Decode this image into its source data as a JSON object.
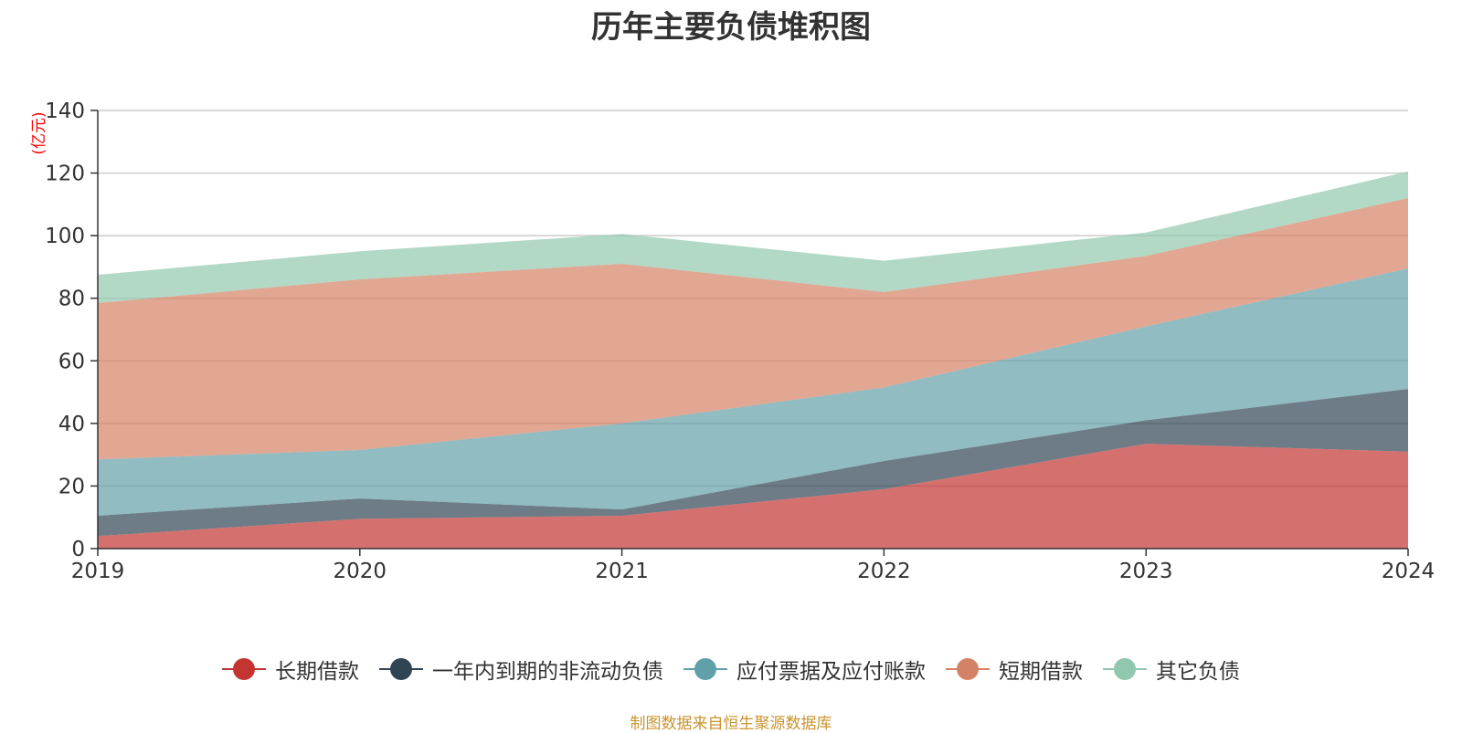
{
  "chart_data": {
    "type": "area",
    "stacked": true,
    "title": "历年主要负债堆积图",
    "unit_label": "(亿元)",
    "x": [
      "2019",
      "2020",
      "2021",
      "2022",
      "2023",
      "2024"
    ],
    "ylim": [
      0,
      140
    ],
    "yticks": [
      0,
      20,
      40,
      60,
      80,
      100,
      120,
      140
    ],
    "grid": true,
    "legend_position": "bottom",
    "series": [
      {
        "name": "长期借款",
        "color": "#c23531",
        "values": [
          4,
          9.5,
          10.5,
          19,
          33.5,
          31
        ]
      },
      {
        "name": "一年内到期的非流动负债",
        "color": "#2f4554",
        "values": [
          6.5,
          6.5,
          2,
          9,
          7.5,
          20
        ]
      },
      {
        "name": "应付票据及应付账款",
        "color": "#61a0a8",
        "values": [
          18,
          15.5,
          27.5,
          23.5,
          30,
          38.5
        ]
      },
      {
        "name": "短期借款",
        "color": "#d48265",
        "values": [
          50,
          54.5,
          51,
          30.5,
          22.5,
          22.5
        ]
      },
      {
        "name": "其它负债",
        "color": "#91c7ae",
        "values": [
          9,
          9,
          9.5,
          10,
          7.5,
          8.5
        ]
      }
    ],
    "source": "制图数据来自恒生聚源数据库"
  }
}
